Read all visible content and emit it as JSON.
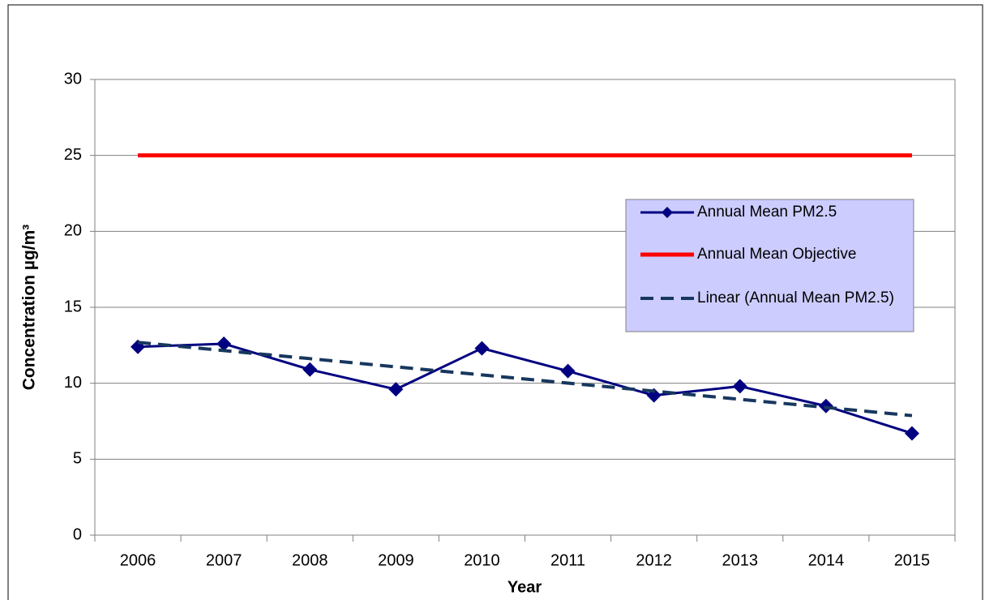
{
  "chart_data": {
    "type": "line",
    "y_label": "Concentration  µg/m³",
    "x_label": "Year",
    "categories": [
      "2006",
      "2007",
      "2008",
      "2009",
      "2010",
      "2011",
      "2012",
      "2013",
      "2014",
      "2015"
    ],
    "series": [
      {
        "name": "Annual Mean PM2.5",
        "color": "#000080",
        "marker": "diamond",
        "dashed": false,
        "values": [
          12.4,
          12.6,
          10.9,
          9.6,
          12.3,
          10.8,
          9.2,
          9.8,
          8.5,
          6.7
        ]
      },
      {
        "name": "Annual Mean Objective",
        "color": "#ff0000",
        "marker": "none",
        "dashed": false,
        "values": [
          25,
          25,
          25,
          25,
          25,
          25,
          25,
          25,
          25,
          25
        ]
      },
      {
        "name": "Linear (Annual Mean PM2.5)",
        "color": "#17375e",
        "marker": "none",
        "dashed": true,
        "values": [
          12.69,
          12.15,
          11.62,
          11.08,
          10.55,
          10.01,
          9.48,
          8.94,
          8.41,
          7.87
        ]
      }
    ],
    "ylim": [
      0,
      30
    ],
    "yticks": [
      0,
      5,
      10,
      15,
      20,
      25,
      30
    ],
    "grid": true,
    "legend": "right"
  }
}
